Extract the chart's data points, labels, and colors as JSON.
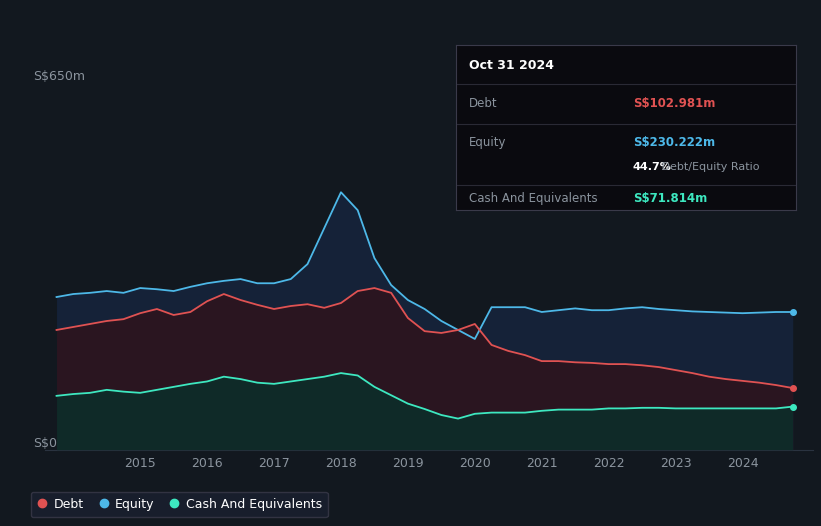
{
  "background_color": "#12181f",
  "plot_bg_color": "#12181f",
  "grid_color": "#2a3340",
  "title_y_label": "S$650m",
  "bottom_label": "S$0",
  "debt_color": "#e05252",
  "equity_color": "#4db8e8",
  "cash_color": "#3de8c0",
  "x_years": [
    2013.75,
    2014.0,
    2014.25,
    2014.5,
    2014.75,
    2015.0,
    2015.25,
    2015.5,
    2015.75,
    2016.0,
    2016.25,
    2016.5,
    2016.75,
    2017.0,
    2017.25,
    2017.5,
    2017.75,
    2018.0,
    2018.25,
    2018.5,
    2018.75,
    2019.0,
    2019.25,
    2019.5,
    2019.75,
    2020.0,
    2020.25,
    2020.5,
    2020.75,
    2021.0,
    2021.25,
    2021.5,
    2021.75,
    2022.0,
    2022.25,
    2022.5,
    2022.75,
    2023.0,
    2023.25,
    2023.5,
    2023.75,
    2024.0,
    2024.25,
    2024.5,
    2024.75
  ],
  "equity": [
    255,
    260,
    262,
    265,
    262,
    270,
    268,
    265,
    272,
    278,
    282,
    285,
    278,
    278,
    285,
    310,
    370,
    430,
    400,
    320,
    275,
    250,
    235,
    215,
    200,
    185,
    238,
    238,
    238,
    230,
    233,
    236,
    233,
    233,
    236,
    238,
    235,
    233,
    231,
    230,
    229,
    228,
    229,
    230,
    230
  ],
  "debt": [
    200,
    205,
    210,
    215,
    218,
    228,
    235,
    225,
    230,
    248,
    260,
    250,
    242,
    235,
    240,
    243,
    237,
    245,
    265,
    270,
    262,
    220,
    198,
    195,
    200,
    210,
    175,
    165,
    158,
    148,
    148,
    146,
    145,
    143,
    143,
    141,
    138,
    133,
    128,
    122,
    118,
    115,
    112,
    108,
    103
  ],
  "cash": [
    90,
    93,
    95,
    100,
    97,
    95,
    100,
    105,
    110,
    114,
    122,
    118,
    112,
    110,
    114,
    118,
    122,
    128,
    124,
    105,
    91,
    77,
    68,
    58,
    52,
    60,
    62,
    62,
    62,
    65,
    67,
    67,
    67,
    69,
    69,
    70,
    70,
    69,
    69,
    69,
    69,
    69,
    69,
    69,
    72
  ],
  "ylim": [
    0,
    650
  ],
  "xlim_start": 2013.58,
  "xlim_end": 2025.05,
  "xtick_years": [
    2015,
    2016,
    2017,
    2018,
    2019,
    2020,
    2021,
    2022,
    2023,
    2024
  ],
  "info_title": "Oct 31 2024",
  "info_debt_label": "Debt",
  "info_debt_value": "S$102.981m",
  "info_equity_label": "Equity",
  "info_equity_value": "S$230.222m",
  "info_ratio": "44.7%",
  "info_ratio_label": " Debt/Equity Ratio",
  "info_cash_label": "Cash And Equivalents",
  "info_cash_value": "S$71.814m",
  "legend_items": [
    "Debt",
    "Equity",
    "Cash And Equivalents"
  ]
}
